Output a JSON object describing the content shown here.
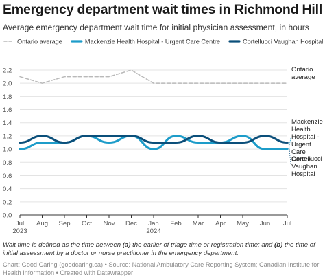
{
  "title": "Emergency department wait times in Richmond Hill",
  "subtitle": "Average emergency department wait time for initial physician assessment, in hours",
  "note": {
    "prefix": "Wait time is defined as the time between ",
    "a_marker": "(a)",
    "a_text": " the earlier of triage time or registration time; and ",
    "b_marker": "(b)",
    "b_text": " the time of initial assessment by a doctor or nurse practitioner in the emergency department."
  },
  "source": "Chart: Good Caring (goodcaring.ca) • Source: National Ambulatory Care Reporting System; Canadian Institute for Health Information • Created with Datawrapper",
  "chart_data": {
    "type": "line",
    "x": [
      "Jul",
      "Aug",
      "Sep",
      "Oct",
      "Nov",
      "Dec",
      "Jan",
      "Feb",
      "Mar",
      "Apr",
      "May",
      "Jun",
      "Jul"
    ],
    "x_years": [
      "2023",
      "",
      "",
      "",
      "",
      "",
      "2024",
      "",
      "",
      "",
      "",
      "",
      ""
    ],
    "ylim": [
      0,
      2.2
    ],
    "yticks": [
      0.0,
      0.2,
      0.4,
      0.6,
      0.8,
      1.0,
      1.2,
      1.4,
      1.6,
      1.8,
      2.0,
      2.2
    ],
    "ytick_labels": [
      "0.0",
      "0.2",
      "0.4",
      "0.6",
      "0.8",
      "1.0",
      "1.2",
      "1.4",
      "1.6",
      "1.8",
      "2.0",
      "2.2"
    ],
    "grid": true,
    "legend_position": "top",
    "series": [
      {
        "name": "Ontario average",
        "end_label": [
          "Ontario",
          "average"
        ],
        "color": "#b9b9b9",
        "dashed": true,
        "smooth": false,
        "values": [
          2.1,
          2.0,
          2.1,
          2.1,
          2.1,
          2.2,
          2.0,
          2.0,
          2.0,
          2.0,
          2.0,
          2.0,
          2.0
        ]
      },
      {
        "name": "Mackenzie Health Hospital - Urgent Care Centre",
        "end_label": [
          "Mackenzie",
          "Health",
          "Hospital -",
          "Urgent",
          "Care",
          "Centre"
        ],
        "color": "#1d9cc9",
        "dashed": false,
        "smooth": true,
        "values": [
          1.0,
          1.1,
          1.1,
          1.2,
          1.1,
          1.2,
          1.0,
          1.2,
          1.1,
          1.1,
          1.2,
          1.0,
          1.0
        ]
      },
      {
        "name": "Cortellucci Vaughan Hospital",
        "end_label": [
          "Cortellucci",
          "Vaughan",
          "Hospital"
        ],
        "color": "#0b4f7a",
        "dashed": false,
        "smooth": true,
        "values": [
          1.1,
          1.2,
          1.1,
          1.2,
          1.2,
          1.2,
          1.1,
          1.1,
          1.2,
          1.1,
          1.1,
          1.2,
          1.1
        ]
      }
    ]
  }
}
